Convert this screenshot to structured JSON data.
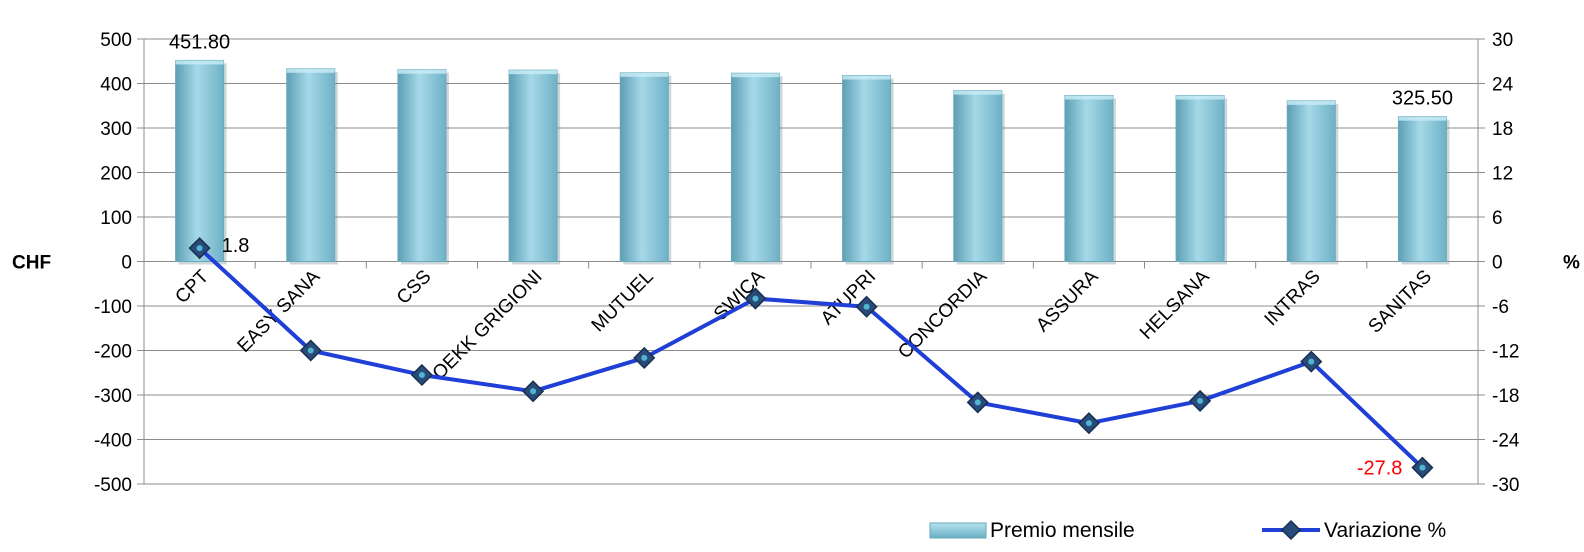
{
  "chart_data": {
    "type": "bar+line",
    "categories": [
      "CPT",
      "EASY SANA",
      "CSS",
      "OEKK GRIGIONI",
      "MUTUEL",
      "SWICA",
      "ATUPRI",
      "CONCORDIA",
      "ASSURA",
      "HELSANA",
      "INTRAS",
      "SANITAS"
    ],
    "series": [
      {
        "name": "Premio mensile",
        "type": "bar",
        "axis": "left",
        "color": "#8fcadb",
        "values": [
          451.8,
          433,
          431,
          430,
          424,
          423,
          418,
          384,
          373,
          373,
          361,
          325.5
        ]
      },
      {
        "name": "Variazione %",
        "type": "line",
        "axis": "right",
        "color": "#1f3fd6",
        "marker_color": "#2a4a7a",
        "values": [
          1.8,
          -12.0,
          -15.3,
          -17.5,
          -13.0,
          -5.0,
          -6.1,
          -19.0,
          -21.8,
          -18.8,
          -13.5,
          -27.8
        ]
      }
    ],
    "y_left": {
      "label": "CHF",
      "lim": [
        -500,
        500
      ],
      "ticks": [
        "500",
        "400",
        "300",
        "200",
        "100",
        "0",
        "-100",
        "-200",
        "-300",
        "-400",
        "-500"
      ]
    },
    "y_right": {
      "label": "%",
      "lim": [
        -30,
        30
      ],
      "ticks": [
        "30",
        "24",
        "18",
        "12",
        "6",
        "0",
        "-6",
        "-12",
        "-18",
        "-24",
        "-30"
      ],
      "negative_color": "#ff0000"
    },
    "data_labels": [
      {
        "series": "Premio mensile",
        "index": 0,
        "text": "451.80",
        "color": "#000000"
      },
      {
        "series": "Premio mensile",
        "index": 11,
        "text": "325.50",
        "color": "#000000"
      },
      {
        "series": "Variazione %",
        "index": 0,
        "text": "1.8",
        "color": "#000000"
      },
      {
        "series": "Variazione %",
        "index": 11,
        "text": "-27.8",
        "color": "#ff0000"
      }
    ],
    "grid": true,
    "legend": {
      "position": "bottom-right",
      "items": [
        "Premio mensile",
        "Variazione %"
      ]
    }
  }
}
